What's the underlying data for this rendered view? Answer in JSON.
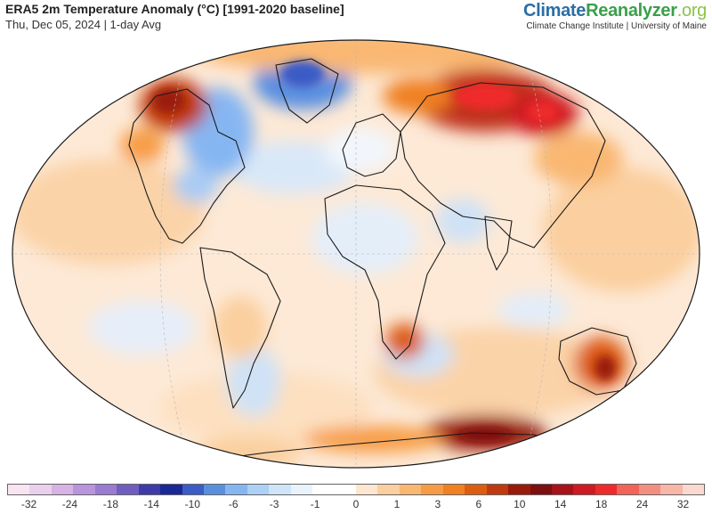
{
  "header": {
    "title": "ERA5 2m Temperature Anomaly (°C) [1991-2020 baseline]",
    "subtitle": "Thu, Dec 05, 2024 | 1-day Avg"
  },
  "brand": {
    "name_part1": "Climate",
    "name_part2": "Reanalyzer",
    "name_part3": ".org",
    "tagline": "Climate Change Institute | University of Maine"
  },
  "colors": {
    "land_outline": "#1a1a1a",
    "background": "#ffffff",
    "brand_blue": "#2b6ea6",
    "brand_green": "#3aa04a"
  },
  "legend": {
    "swatches": [
      "#f9e4f2",
      "#ead0ec",
      "#d6b3e4",
      "#b995de",
      "#9a7bd2",
      "#6f5ec0",
      "#3e3aa8",
      "#1a2896",
      "#3b5cc6",
      "#5a8fe0",
      "#86b6f2",
      "#acd0f6",
      "#cfe4f8",
      "#eaf2fb",
      "#ffffff",
      "#ffffff",
      "#fde7d0",
      "#fbcf9f",
      "#f9b772",
      "#f79c45",
      "#f08020",
      "#dc5c12",
      "#bf3a0e",
      "#9a1a0c",
      "#7d0f10",
      "#a8121a",
      "#d01a22",
      "#ef2a2a",
      "#f2635a",
      "#f48e80",
      "#f7b6a8",
      "#fad9d0"
    ],
    "labels": [
      "-32",
      "-24",
      "-18",
      "-14",
      "-10",
      "-6",
      "-3",
      "-1",
      "0",
      "1",
      "3",
      "6",
      "10",
      "14",
      "18",
      "24",
      "32"
    ]
  },
  "map_data": {
    "projection": "Winkel Tripel style (global)",
    "variable": "2m temperature anomaly",
    "units": "°C",
    "highlights": [
      {
        "region": "Siberia / Central Asia",
        "anomaly": "strong warm"
      },
      {
        "region": "Alaska / Yukon",
        "anomaly": "strong warm"
      },
      {
        "region": "Greenland",
        "anomaly": "cold"
      },
      {
        "region": "Eastern North America",
        "anomaly": "cold"
      },
      {
        "region": "Southern Africa",
        "anomaly": "warm"
      },
      {
        "region": "Australia",
        "anomaly": "warm"
      },
      {
        "region": "East Antarctica",
        "anomaly": "strong warm"
      },
      {
        "region": "Patagonia",
        "anomaly": "cold"
      }
    ]
  }
}
